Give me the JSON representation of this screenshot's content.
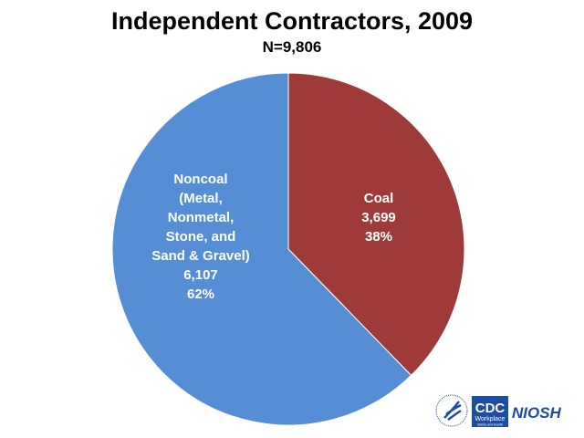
{
  "chart_data": {
    "type": "pie",
    "title": "Independent Contractors, 2009",
    "subtitle": "N=9,806",
    "slices": [
      {
        "label_lines": [
          "Coal",
          "3,699",
          "38%"
        ],
        "name": "Coal",
        "value": 3699,
        "percent": 38,
        "color": "#9E3B39"
      },
      {
        "label_lines": [
          "Noncoal",
          "(Metal,",
          "Nonmetal,",
          "Stone, and",
          "Sand & Gravel)",
          "6,107",
          "62%"
        ],
        "name": "Noncoal (Metal, Nonmetal, Stone, and Sand & Gravel)",
        "value": 6107,
        "percent": 62,
        "color": "#558ED5"
      }
    ],
    "start_angle": "top, clockwise"
  },
  "logo": {
    "cdc": "CDC",
    "workplace": "Workplace",
    "safety": "Safety and Health",
    "niosh": "NIOSH"
  }
}
